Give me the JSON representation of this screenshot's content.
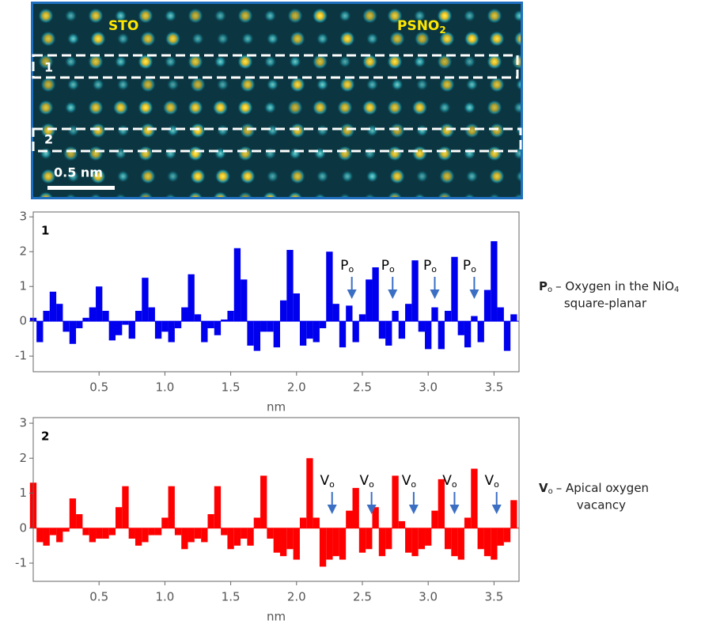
{
  "image": {
    "left_label": "STO",
    "right_label": "PSNO",
    "right_label_sub": "2",
    "strips": [
      "1",
      "2"
    ],
    "scale_bar": "0.5 nm"
  },
  "chart_data": [
    {
      "type": "bar",
      "panel_label": "1",
      "xlabel": "nm",
      "color": "#0000ee",
      "x": [
        0.0,
        0.05,
        0.1,
        0.15,
        0.2,
        0.25,
        0.3,
        0.35,
        0.4,
        0.45,
        0.5,
        0.55,
        0.6,
        0.65,
        0.7,
        0.75,
        0.8,
        0.85,
        0.9,
        0.95,
        1.0,
        1.05,
        1.1,
        1.15,
        1.2,
        1.25,
        1.3,
        1.35,
        1.4,
        1.45,
        1.5,
        1.55,
        1.6,
        1.65,
        1.7,
        1.75,
        1.8,
        1.85,
        1.9,
        1.95,
        2.0,
        2.05,
        2.1,
        2.15,
        2.2,
        2.25,
        2.3,
        2.35,
        2.4,
        2.45,
        2.5,
        2.55,
        2.6,
        2.65,
        2.7,
        2.75,
        2.8,
        2.85,
        2.9,
        2.95,
        3.0,
        3.05,
        3.1,
        3.15,
        3.2,
        3.25,
        3.3,
        3.35,
        3.4,
        3.45,
        3.5,
        3.55,
        3.6,
        3.65
      ],
      "values": [
        0.1,
        -0.6,
        0.3,
        0.85,
        0.5,
        -0.3,
        -0.65,
        -0.2,
        0.1,
        0.4,
        1.0,
        0.3,
        -0.55,
        -0.4,
        -0.1,
        -0.5,
        0.3,
        1.25,
        0.4,
        -0.5,
        -0.3,
        -0.6,
        -0.2,
        0.4,
        1.35,
        0.2,
        -0.6,
        -0.2,
        -0.4,
        0.05,
        0.3,
        2.1,
        1.2,
        -0.7,
        -0.85,
        -0.3,
        -0.3,
        -0.75,
        0.6,
        2.05,
        0.8,
        -0.7,
        -0.5,
        -0.6,
        -0.2,
        2.0,
        0.5,
        -0.75,
        0.45,
        -0.6,
        0.2,
        1.2,
        1.55,
        -0.5,
        -0.7,
        0.3,
        -0.5,
        0.5,
        1.75,
        -0.3,
        -0.8,
        0.4,
        -0.8,
        0.3,
        1.85,
        -0.4,
        -0.75,
        0.15,
        -0.6,
        0.9,
        2.3,
        0.4,
        -0.85,
        0.2
      ],
      "xlim": [
        0,
        3.69
      ],
      "ylim": [
        -1.45,
        3.14
      ],
      "xticks": [
        0.5,
        {
          "value": 1,
          "label": "1.0"
        },
        1.5,
        {
          "value": 2,
          "label": "2.0"
        },
        2.5,
        {
          "value": 3,
          "label": "3.0"
        },
        3.5
      ],
      "yticks": [
        -1,
        0,
        1,
        2,
        3
      ],
      "annotations": [
        {
          "label": "P",
          "sub": "o",
          "x": 2.42
        },
        {
          "label": "P",
          "sub": "o",
          "x": 2.73
        },
        {
          "label": "P",
          "sub": "o",
          "x": 3.05
        },
        {
          "label": "P",
          "sub": "o",
          "x": 3.35
        }
      ],
      "note": {
        "symbol": "P",
        "symbol_sub": "o",
        "text": "– Oxygen in the NiO",
        "text_sub": "4",
        "text_2": "square-planar"
      }
    },
    {
      "type": "bar",
      "panel_label": "2",
      "xlabel": "nm",
      "color": "#ff0000",
      "x": [
        0.0,
        0.05,
        0.1,
        0.15,
        0.2,
        0.25,
        0.3,
        0.35,
        0.4,
        0.45,
        0.5,
        0.55,
        0.6,
        0.65,
        0.7,
        0.75,
        0.8,
        0.85,
        0.9,
        0.95,
        1.0,
        1.05,
        1.1,
        1.15,
        1.2,
        1.25,
        1.3,
        1.35,
        1.4,
        1.45,
        1.5,
        1.55,
        1.6,
        1.65,
        1.7,
        1.75,
        1.8,
        1.85,
        1.9,
        1.95,
        2.0,
        2.05,
        2.1,
        2.15,
        2.2,
        2.25,
        2.3,
        2.35,
        2.4,
        2.45,
        2.5,
        2.55,
        2.6,
        2.65,
        2.7,
        2.75,
        2.8,
        2.85,
        2.9,
        2.95,
        3.0,
        3.05,
        3.1,
        3.15,
        3.2,
        3.25,
        3.3,
        3.35,
        3.4,
        3.45,
        3.5,
        3.55,
        3.6,
        3.65
      ],
      "values": [
        1.3,
        -0.4,
        -0.5,
        -0.2,
        -0.4,
        -0.1,
        0.85,
        0.4,
        -0.2,
        -0.4,
        -0.3,
        -0.3,
        -0.2,
        0.6,
        1.2,
        -0.3,
        -0.5,
        -0.4,
        -0.2,
        -0.2,
        0.3,
        1.2,
        -0.2,
        -0.6,
        -0.4,
        -0.3,
        -0.4,
        0.4,
        1.2,
        -0.2,
        -0.6,
        -0.5,
        -0.3,
        -0.5,
        0.3,
        1.5,
        -0.3,
        -0.7,
        -0.8,
        -0.6,
        -0.9,
        0.3,
        2.0,
        0.3,
        -1.1,
        -0.9,
        -0.8,
        -0.9,
        0.5,
        1.15,
        -0.7,
        -0.6,
        0.6,
        -0.8,
        -0.6,
        1.5,
        0.2,
        -0.7,
        -0.8,
        -0.6,
        -0.5,
        0.5,
        1.4,
        -0.6,
        -0.8,
        -0.9,
        0.3,
        1.7,
        -0.6,
        -0.8,
        -0.9,
        -0.5,
        -0.4,
        0.8
      ],
      "xlim": [
        0,
        3.69
      ],
      "ylim": [
        -1.52,
        3.16
      ],
      "xticks": [
        0.5,
        {
          "value": 1,
          "label": "1.0"
        },
        1.5,
        {
          "value": 2,
          "label": "2.0"
        },
        2.5,
        {
          "value": 3,
          "label": "3.0"
        },
        3.5
      ],
      "yticks": [
        -1,
        0,
        1,
        2,
        3
      ],
      "annotations": [
        {
          "label": "V",
          "sub": "o",
          "x": 2.27
        },
        {
          "label": "V",
          "sub": "o",
          "x": 2.57
        },
        {
          "label": "V",
          "sub": "o",
          "x": 2.89
        },
        {
          "label": "V",
          "sub": "o",
          "x": 3.2
        },
        {
          "label": "V",
          "sub": "o",
          "x": 3.52
        }
      ],
      "note": {
        "symbol": "V",
        "symbol_sub": "o",
        "text": "– Apical oxygen",
        "text_2": "vacancy"
      }
    }
  ]
}
